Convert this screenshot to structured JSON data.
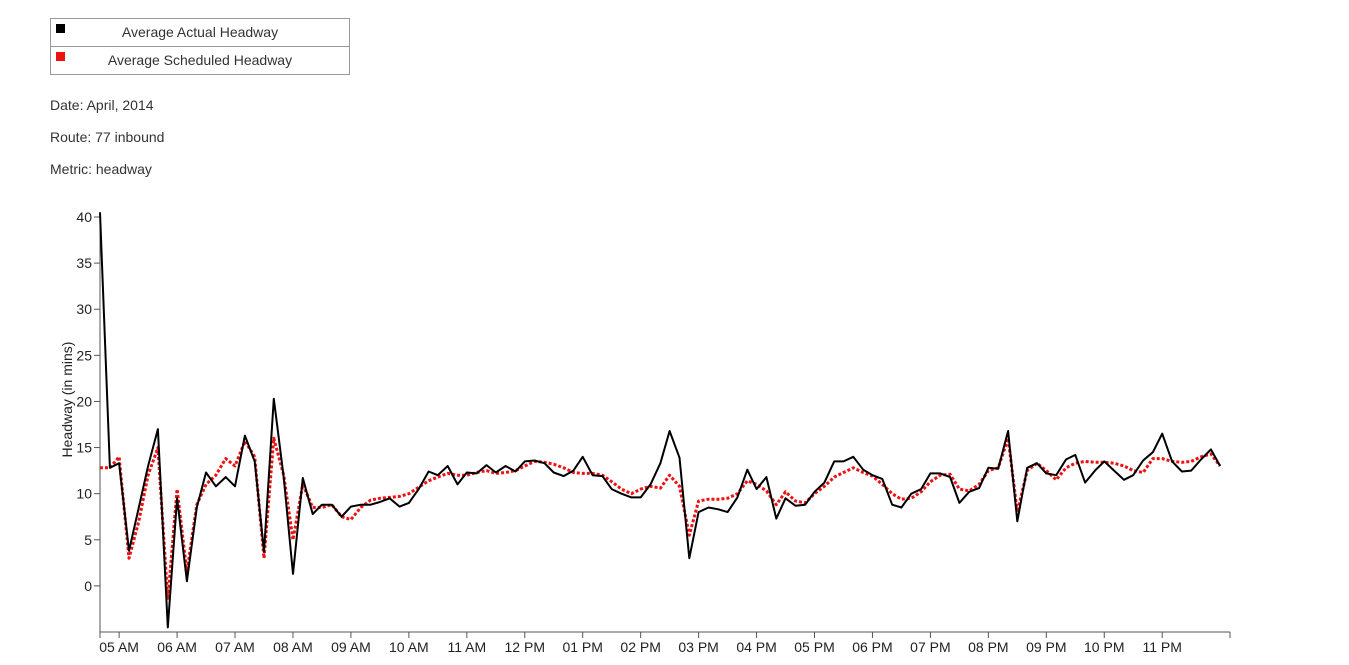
{
  "legend": {
    "actual": {
      "label": "Average Actual Headway",
      "color": "#000000"
    },
    "scheduled": {
      "label": "Average Scheduled Headway",
      "color": "#ee1111"
    }
  },
  "info": {
    "date": "Date: April, 2014",
    "route": "Route: 77 inbound",
    "metric": "Metric: headway"
  },
  "chart_data": {
    "type": "line",
    "ylabel": "Headway (in mins)",
    "xlabel": "",
    "ylim": [
      -5,
      40
    ],
    "yticks": [
      0,
      5,
      10,
      15,
      20,
      25,
      30,
      35,
      40
    ],
    "xlim": [
      5.0,
      24.5
    ],
    "xticks": [
      {
        "x": 5.33,
        "label": "05 AM"
      },
      {
        "x": 6.33,
        "label": "06 AM"
      },
      {
        "x": 7.33,
        "label": "07 AM"
      },
      {
        "x": 8.33,
        "label": "08 AM"
      },
      {
        "x": 9.33,
        "label": "09 AM"
      },
      {
        "x": 10.33,
        "label": "10 AM"
      },
      {
        "x": 11.33,
        "label": "11 AM"
      },
      {
        "x": 12.33,
        "label": "12 PM"
      },
      {
        "x": 13.33,
        "label": "01 PM"
      },
      {
        "x": 14.33,
        "label": "02 PM"
      },
      {
        "x": 15.33,
        "label": "03 PM"
      },
      {
        "x": 16.33,
        "label": "04 PM"
      },
      {
        "x": 17.33,
        "label": "05 PM"
      },
      {
        "x": 18.33,
        "label": "06 PM"
      },
      {
        "x": 19.33,
        "label": "07 PM"
      },
      {
        "x": 20.33,
        "label": "08 PM"
      },
      {
        "x": 21.33,
        "label": "09 PM"
      },
      {
        "x": 22.33,
        "label": "10 PM"
      },
      {
        "x": 23.33,
        "label": "11 PM"
      }
    ],
    "series": [
      {
        "name": "Average Actual Headway",
        "color": "#000000",
        "style": "solid",
        "points": [
          [
            5.0,
            40.5
          ],
          [
            5.17,
            12.8
          ],
          [
            5.33,
            13.3
          ],
          [
            5.5,
            3.8
          ],
          [
            5.67,
            8.5
          ],
          [
            5.83,
            13.0
          ],
          [
            6.0,
            17.0
          ],
          [
            6.17,
            -4.5
          ],
          [
            6.33,
            9.5
          ],
          [
            6.5,
            0.5
          ],
          [
            6.67,
            8.5
          ],
          [
            6.83,
            12.3
          ],
          [
            7.0,
            10.8
          ],
          [
            7.17,
            11.8
          ],
          [
            7.33,
            10.8
          ],
          [
            7.5,
            16.3
          ],
          [
            7.67,
            13.5
          ],
          [
            7.83,
            3.7
          ],
          [
            8.0,
            20.3
          ],
          [
            8.17,
            11.8
          ],
          [
            8.33,
            1.3
          ],
          [
            8.5,
            11.7
          ],
          [
            8.67,
            7.8
          ],
          [
            8.83,
            8.8
          ],
          [
            9.0,
            8.8
          ],
          [
            9.17,
            7.5
          ],
          [
            9.33,
            8.6
          ],
          [
            9.5,
            8.8
          ],
          [
            9.67,
            8.8
          ],
          [
            9.83,
            9.1
          ],
          [
            10.0,
            9.5
          ],
          [
            10.17,
            8.6
          ],
          [
            10.33,
            9.0
          ],
          [
            10.5,
            10.5
          ],
          [
            10.67,
            12.4
          ],
          [
            10.83,
            12.0
          ],
          [
            11.0,
            13.0
          ],
          [
            11.17,
            11.0
          ],
          [
            11.33,
            12.3
          ],
          [
            11.5,
            12.2
          ],
          [
            11.67,
            13.1
          ],
          [
            11.83,
            12.3
          ],
          [
            12.0,
            13.0
          ],
          [
            12.17,
            12.4
          ],
          [
            12.33,
            13.5
          ],
          [
            12.5,
            13.6
          ],
          [
            12.67,
            13.3
          ],
          [
            12.83,
            12.3
          ],
          [
            13.0,
            11.9
          ],
          [
            13.17,
            12.5
          ],
          [
            13.33,
            14.0
          ],
          [
            13.5,
            12.0
          ],
          [
            13.67,
            11.9
          ],
          [
            13.83,
            10.5
          ],
          [
            14.0,
            10.0
          ],
          [
            14.17,
            9.6
          ],
          [
            14.33,
            9.6
          ],
          [
            14.5,
            11.0
          ],
          [
            14.67,
            13.3
          ],
          [
            14.83,
            16.8
          ],
          [
            15.0,
            13.9
          ],
          [
            15.17,
            3.0
          ],
          [
            15.33,
            8.0
          ],
          [
            15.5,
            8.5
          ],
          [
            15.67,
            8.3
          ],
          [
            15.83,
            8.0
          ],
          [
            16.0,
            9.6
          ],
          [
            16.17,
            12.6
          ],
          [
            16.33,
            10.5
          ],
          [
            16.5,
            11.8
          ],
          [
            16.67,
            7.3
          ],
          [
            16.83,
            9.5
          ],
          [
            17.0,
            8.7
          ],
          [
            17.17,
            8.8
          ],
          [
            17.33,
            10.2
          ],
          [
            17.5,
            11.2
          ],
          [
            17.67,
            13.5
          ],
          [
            17.83,
            13.5
          ],
          [
            18.0,
            14.0
          ],
          [
            18.17,
            12.6
          ],
          [
            18.33,
            12.0
          ],
          [
            18.5,
            11.6
          ],
          [
            18.67,
            8.8
          ],
          [
            18.83,
            8.5
          ],
          [
            19.0,
            10.0
          ],
          [
            19.17,
            10.5
          ],
          [
            19.33,
            12.2
          ],
          [
            19.5,
            12.2
          ],
          [
            19.67,
            11.8
          ],
          [
            19.83,
            9.0
          ],
          [
            20.0,
            10.2
          ],
          [
            20.17,
            10.6
          ],
          [
            20.33,
            12.8
          ],
          [
            20.5,
            12.7
          ],
          [
            20.67,
            16.8
          ],
          [
            20.83,
            7.0
          ],
          [
            21.0,
            12.8
          ],
          [
            21.17,
            13.3
          ],
          [
            21.33,
            12.2
          ],
          [
            21.5,
            12.0
          ],
          [
            21.67,
            13.7
          ],
          [
            21.83,
            14.2
          ],
          [
            22.0,
            11.2
          ],
          [
            22.17,
            12.5
          ],
          [
            22.33,
            13.5
          ],
          [
            22.5,
            12.5
          ],
          [
            22.67,
            11.5
          ],
          [
            22.83,
            12.0
          ],
          [
            23.0,
            13.6
          ],
          [
            23.17,
            14.5
          ],
          [
            23.33,
            16.5
          ],
          [
            23.5,
            13.5
          ],
          [
            23.67,
            12.4
          ],
          [
            23.83,
            12.5
          ],
          [
            24.0,
            13.7
          ],
          [
            24.17,
            14.8
          ],
          [
            24.33,
            13.0
          ]
        ]
      },
      {
        "name": "Average Scheduled Headway",
        "color": "#ee1111",
        "style": "dotted",
        "points": [
          [
            5.0,
            12.8
          ],
          [
            5.17,
            12.8
          ],
          [
            5.33,
            14.0
          ],
          [
            5.5,
            3.0
          ],
          [
            5.67,
            7.0
          ],
          [
            5.83,
            12.0
          ],
          [
            6.0,
            15.0
          ],
          [
            6.17,
            -1.5
          ],
          [
            6.33,
            10.5
          ],
          [
            6.5,
            1.5
          ],
          [
            6.67,
            8.8
          ],
          [
            6.83,
            11.0
          ],
          [
            7.0,
            12.0
          ],
          [
            7.17,
            13.8
          ],
          [
            7.33,
            13.0
          ],
          [
            7.5,
            15.7
          ],
          [
            7.67,
            14.0
          ],
          [
            7.83,
            3.0
          ],
          [
            8.0,
            16.0
          ],
          [
            8.17,
            12.0
          ],
          [
            8.33,
            5.0
          ],
          [
            8.5,
            11.0
          ],
          [
            8.67,
            8.5
          ],
          [
            8.83,
            8.5
          ],
          [
            9.0,
            8.8
          ],
          [
            9.17,
            7.5
          ],
          [
            9.33,
            7.2
          ],
          [
            9.5,
            8.5
          ],
          [
            9.67,
            9.3
          ],
          [
            9.83,
            9.5
          ],
          [
            10.0,
            9.6
          ],
          [
            10.17,
            9.7
          ],
          [
            10.33,
            10.0
          ],
          [
            10.5,
            10.7
          ],
          [
            10.67,
            11.4
          ],
          [
            10.83,
            11.8
          ],
          [
            11.0,
            12.2
          ],
          [
            11.17,
            12.0
          ],
          [
            11.33,
            12.0
          ],
          [
            11.5,
            12.3
          ],
          [
            11.67,
            12.5
          ],
          [
            11.83,
            12.2
          ],
          [
            12.0,
            12.3
          ],
          [
            12.17,
            12.5
          ],
          [
            12.33,
            13.0
          ],
          [
            12.5,
            13.5
          ],
          [
            12.67,
            13.4
          ],
          [
            12.83,
            13.2
          ],
          [
            13.0,
            12.8
          ],
          [
            13.17,
            12.3
          ],
          [
            13.33,
            12.2
          ],
          [
            13.5,
            12.2
          ],
          [
            13.67,
            12.0
          ],
          [
            13.83,
            11.3
          ],
          [
            14.0,
            10.5
          ],
          [
            14.17,
            10.0
          ],
          [
            14.33,
            10.5
          ],
          [
            14.5,
            10.8
          ],
          [
            14.67,
            10.6
          ],
          [
            14.83,
            12.0
          ],
          [
            15.0,
            10.8
          ],
          [
            15.17,
            5.5
          ],
          [
            15.33,
            9.2
          ],
          [
            15.5,
            9.4
          ],
          [
            15.67,
            9.4
          ],
          [
            15.83,
            9.5
          ],
          [
            16.0,
            10.0
          ],
          [
            16.17,
            11.4
          ],
          [
            16.33,
            11.0
          ],
          [
            16.5,
            10.3
          ],
          [
            16.67,
            8.8
          ],
          [
            16.83,
            10.2
          ],
          [
            17.0,
            9.2
          ],
          [
            17.17,
            9.0
          ],
          [
            17.33,
            10.0
          ],
          [
            17.5,
            10.8
          ],
          [
            17.67,
            11.8
          ],
          [
            17.83,
            12.3
          ],
          [
            18.0,
            12.8
          ],
          [
            18.17,
            12.3
          ],
          [
            18.33,
            11.9
          ],
          [
            18.5,
            11.0
          ],
          [
            18.67,
            10.0
          ],
          [
            18.83,
            9.4
          ],
          [
            19.0,
            9.5
          ],
          [
            19.17,
            10.2
          ],
          [
            19.33,
            11.3
          ],
          [
            19.5,
            12.0
          ],
          [
            19.67,
            12.1
          ],
          [
            19.83,
            10.5
          ],
          [
            20.0,
            10.3
          ],
          [
            20.17,
            11.0
          ],
          [
            20.33,
            12.5
          ],
          [
            20.5,
            12.8
          ],
          [
            20.67,
            16.0
          ],
          [
            20.83,
            8.0
          ],
          [
            21.0,
            12.5
          ],
          [
            21.17,
            13.3
          ],
          [
            21.33,
            12.5
          ],
          [
            21.5,
            11.5
          ],
          [
            21.67,
            12.8
          ],
          [
            21.83,
            13.3
          ],
          [
            22.0,
            13.5
          ],
          [
            22.17,
            13.4
          ],
          [
            22.33,
            13.4
          ],
          [
            22.5,
            13.3
          ],
          [
            22.67,
            13.0
          ],
          [
            22.83,
            12.5
          ],
          [
            23.0,
            12.3
          ],
          [
            23.17,
            13.8
          ],
          [
            23.33,
            13.8
          ],
          [
            23.5,
            13.5
          ],
          [
            23.67,
            13.4
          ],
          [
            23.83,
            13.5
          ],
          [
            24.0,
            14.0
          ],
          [
            24.17,
            14.3
          ],
          [
            24.33,
            13.0
          ]
        ]
      }
    ]
  }
}
